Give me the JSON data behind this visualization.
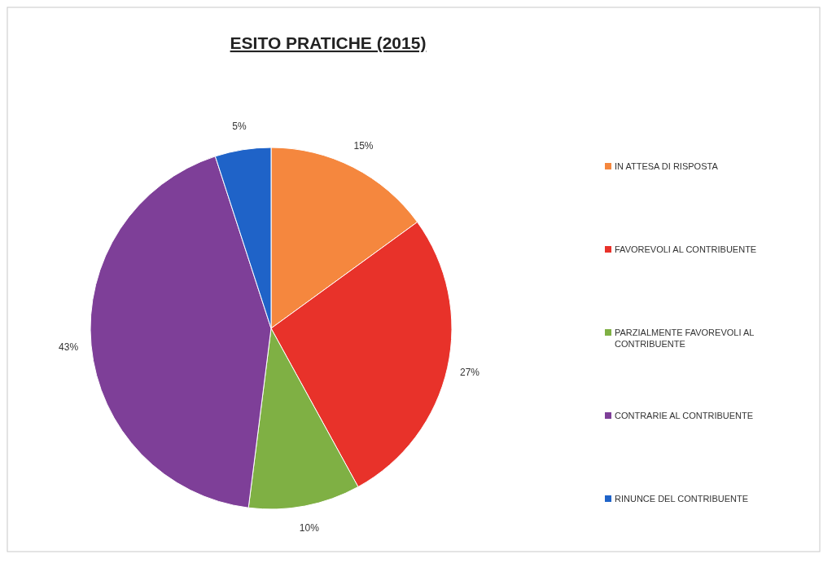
{
  "chart_data": {
    "type": "pie",
    "title": "ESITO PRATICHE (2015)",
    "categories": [
      "IN ATTESA DI RISPOSTA",
      "FAVOREVOLI AL CONTRIBUENTE",
      "PARZIALMENTE FAVOREVOLI AL CONTRIBUENTE",
      "CONTRARIE AL CONTRIBUENTE",
      "RINUNCE DEL CONTRIBUENTE"
    ],
    "values": [
      15,
      27,
      10,
      43,
      5
    ],
    "colors": [
      "#f5873e",
      "#e8322a",
      "#7fb044",
      "#7e3f98",
      "#1f63c8"
    ],
    "value_labels": [
      "15%",
      "27%",
      "10%",
      "43%",
      "5%"
    ],
    "legend": "right"
  }
}
